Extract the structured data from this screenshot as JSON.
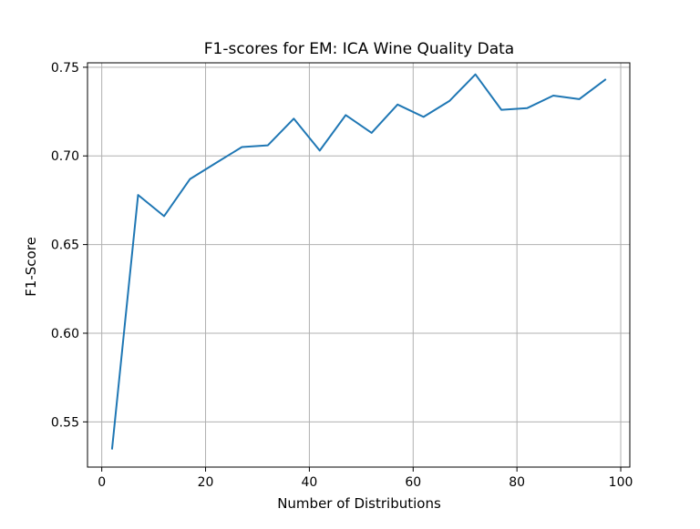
{
  "chart_data": {
    "type": "line",
    "title": "F1-scores for EM: ICA Wine Quality Data",
    "xlabel": "Number of Distributions",
    "ylabel": "F1-Score",
    "xlim": [
      -2.75,
      101.75
    ],
    "ylim": [
      0.5245,
      0.7525
    ],
    "xticks": [
      0,
      20,
      40,
      60,
      80,
      100
    ],
    "xtick_labels": [
      "0",
      "20",
      "40",
      "60",
      "80",
      "100"
    ],
    "yticks": [
      0.55,
      0.6,
      0.65,
      0.7,
      0.75
    ],
    "ytick_labels": [
      "0.55",
      "0.60",
      "0.65",
      "0.70",
      "0.75"
    ],
    "grid": true,
    "series": [
      {
        "color": "#1f77b4",
        "x": [
          2,
          7,
          12,
          17,
          22,
          27,
          32,
          37,
          42,
          47,
          52,
          57,
          62,
          67,
          72,
          77,
          82,
          87,
          92,
          97
        ],
        "y": [
          0.535,
          0.678,
          0.666,
          0.687,
          0.696,
          0.705,
          0.706,
          0.721,
          0.703,
          0.723,
          0.713,
          0.729,
          0.722,
          0.731,
          0.746,
          0.726,
          0.727,
          0.734,
          0.732,
          0.743
        ]
      }
    ]
  }
}
